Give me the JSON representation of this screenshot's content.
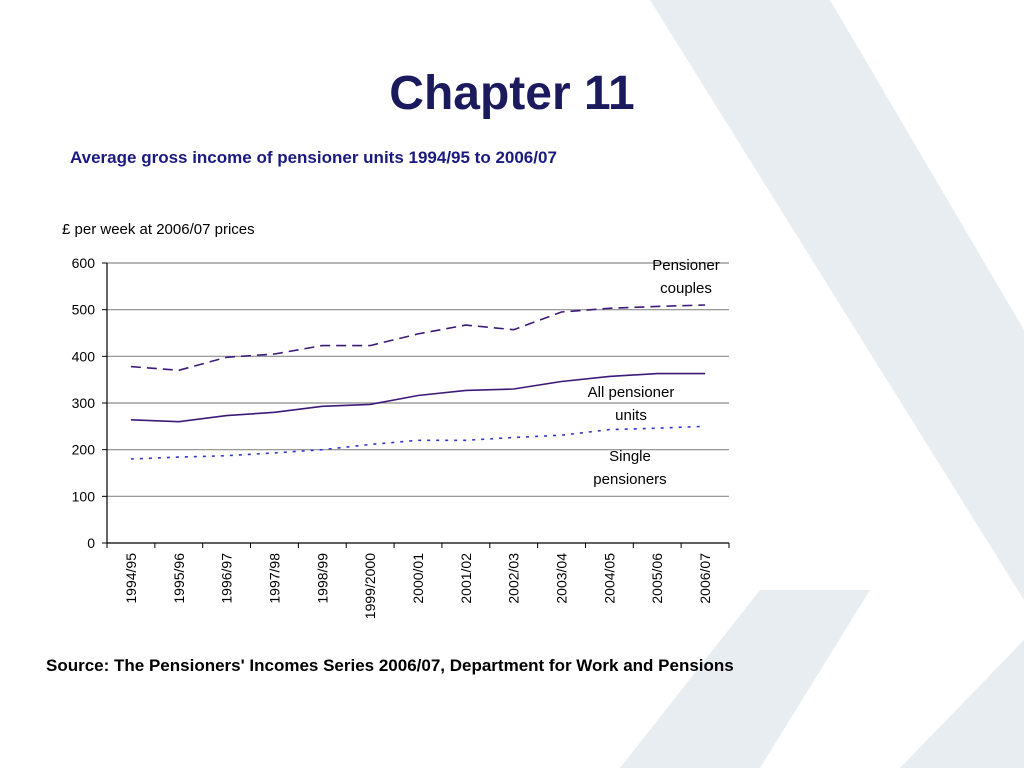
{
  "slide": {
    "title": "Chapter 11",
    "source": "Source: The Pensioners' Incomes Series 2006/07, Department for Work and Pensions"
  },
  "chart_data": {
    "type": "line",
    "title": "Average gross income of pensioner units 1994/95 to 2006/07",
    "ylabel": "£ per week at 2006/07 prices",
    "xlabel": "",
    "ylim": [
      0,
      600
    ],
    "yticks": [
      0,
      100,
      200,
      300,
      400,
      500,
      600
    ],
    "grid": true,
    "legend": "direct labels",
    "categories": [
      "1994/95",
      "1995/96",
      "1996/97",
      "1997/98",
      "1998/99",
      "1999/2000",
      "2000/01",
      "2001/02",
      "2002/03",
      "2003/04",
      "2004/05",
      "2005/06",
      "2006/07"
    ],
    "series": [
      {
        "name": "Pensioner couples",
        "label_lines": [
          "Pensioner",
          "couples"
        ],
        "style": "dashed",
        "color": "#3d1a78",
        "values": [
          378,
          370,
          398,
          405,
          423,
          423,
          448,
          467,
          457,
          495,
          503,
          507,
          510
        ]
      },
      {
        "name": "All pensioner units",
        "label_lines": [
          "All pensioner",
          "units"
        ],
        "style": "solid",
        "color": "#3d1a78",
        "values": [
          264,
          260,
          273,
          280,
          293,
          297,
          316,
          327,
          330,
          346,
          357,
          363,
          363
        ]
      },
      {
        "name": "Single pensioners",
        "label_lines": [
          "Single",
          "pensioners"
        ],
        "style": "dotted",
        "color": "#3333cc",
        "values": [
          180,
          184,
          187,
          193,
          200,
          211,
          220,
          220,
          226,
          231,
          243,
          246,
          250
        ]
      }
    ]
  }
}
